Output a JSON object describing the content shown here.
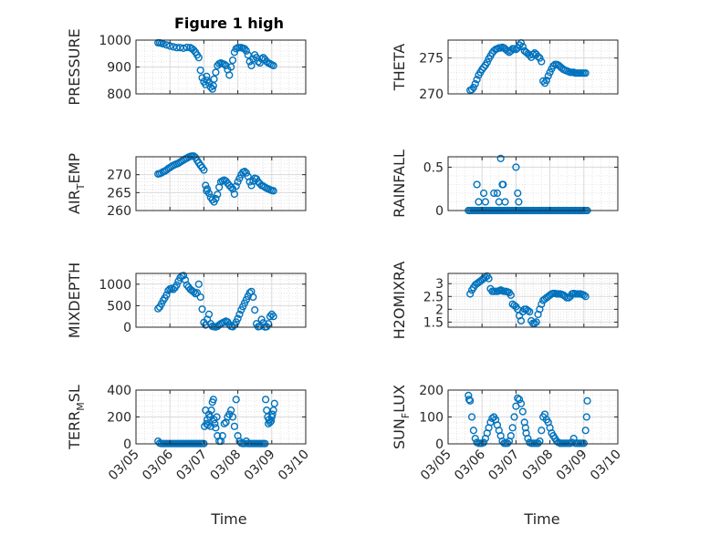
{
  "figure": {
    "title": "Figure 1 high",
    "xlabel": "Time",
    "xticks": [
      "03/05",
      "03/06",
      "03/07",
      "03/08",
      "03/09",
      "03/10"
    ],
    "marker_color": "#0072BD",
    "grid_color": "#d9d9d9",
    "axis_color": "#262626"
  },
  "chart_data": [
    {
      "type": "scatter",
      "ylabel": "PRESSURE",
      "yticks": [
        1000,
        900,
        800
      ],
      "ylim": [
        800,
        1000
      ],
      "xlim": [
        "03/05",
        "03/10"
      ],
      "grid": true,
      "x": [
        5.65,
        5.7,
        5.75,
        5.8,
        5.9,
        6.0,
        6.1,
        6.2,
        6.3,
        6.4,
        6.5,
        6.6,
        6.65,
        6.7,
        6.75,
        6.8,
        6.85,
        6.9,
        6.95,
        7.0,
        7.05,
        7.08,
        7.1,
        7.15,
        7.2,
        7.25,
        7.28,
        7.3,
        7.35,
        7.4,
        7.45,
        7.5,
        7.55,
        7.6,
        7.65,
        7.7,
        7.75,
        7.8,
        7.85,
        7.9,
        7.95,
        8.0,
        8.05,
        8.1,
        8.15,
        8.2,
        8.25,
        8.3,
        8.35,
        8.4,
        8.45,
        8.5,
        8.55,
        8.6,
        8.65,
        8.7,
        8.75,
        8.8,
        8.85,
        8.9,
        8.95,
        9.0,
        9.05
      ],
      "values": [
        990,
        990,
        988,
        986,
        982,
        978,
        975,
        972,
        972,
        970,
        973,
        972,
        968,
        963,
        955,
        945,
        935,
        888,
        860,
        845,
        835,
        865,
        850,
        840,
        825,
        818,
        830,
        855,
        880,
        905,
        912,
        915,
        912,
        910,
        905,
        890,
        870,
        900,
        925,
        955,
        968,
        972,
        972,
        972,
        970,
        968,
        960,
        945,
        920,
        905,
        930,
        945,
        935,
        920,
        915,
        930,
        935,
        928,
        920,
        915,
        912,
        908,
        905
      ]
    },
    {
      "type": "scatter",
      "ylabel": "THETA",
      "yticks": [
        275,
        270
      ],
      "ylim": [
        270,
        277.5
      ],
      "xlim": [
        "03/05",
        "03/10"
      ],
      "grid": true,
      "x": [
        5.65,
        5.7,
        5.75,
        5.8,
        5.85,
        5.9,
        5.95,
        6.0,
        6.05,
        6.1,
        6.15,
        6.2,
        6.25,
        6.3,
        6.35,
        6.4,
        6.45,
        6.5,
        6.55,
        6.6,
        6.65,
        6.7,
        6.75,
        6.8,
        6.85,
        6.9,
        6.95,
        7.0,
        7.05,
        7.1,
        7.15,
        7.2,
        7.25,
        7.3,
        7.35,
        7.4,
        7.45,
        7.5,
        7.55,
        7.6,
        7.65,
        7.7,
        7.75,
        7.8,
        7.85,
        7.9,
        7.95,
        8.0,
        8.05,
        8.1,
        8.15,
        8.2,
        8.25,
        8.3,
        8.35,
        8.4,
        8.45,
        8.5,
        8.55,
        8.6,
        8.65,
        8.7,
        8.75,
        8.8,
        8.85,
        8.9,
        8.95,
        9.0,
        9.05
      ],
      "values": [
        270.5,
        270.6,
        270.9,
        271.4,
        272.0,
        272.6,
        273.0,
        273.4,
        273.7,
        274.0,
        274.4,
        274.9,
        275.3,
        275.7,
        276.0,
        276.2,
        276.3,
        276.4,
        276.4,
        276.5,
        276.4,
        276.2,
        276.0,
        275.8,
        276.0,
        276.3,
        276.3,
        276.2,
        276.4,
        276.8,
        277.1,
        276.6,
        276.0,
        275.8,
        275.6,
        275.4,
        275.1,
        275.5,
        275.7,
        275.5,
        275.2,
        275.0,
        274.5,
        271.8,
        271.5,
        271.9,
        272.5,
        273.0,
        273.5,
        273.9,
        274.1,
        274.1,
        274.0,
        273.8,
        273.6,
        273.4,
        273.3,
        273.2,
        273.1,
        273.0,
        273.0,
        273.0,
        272.9,
        272.9,
        272.9,
        272.9,
        272.9,
        272.9,
        272.9
      ]
    },
    {
      "type": "scatter",
      "ylabel": "AIR_TEMP",
      "yticks": [
        270,
        265,
        260
      ],
      "ylim": [
        260,
        275
      ],
      "xlim": [
        "03/05",
        "03/10"
      ],
      "grid": true,
      "x": [
        5.65,
        5.7,
        5.75,
        5.8,
        5.85,
        5.9,
        5.95,
        6.0,
        6.05,
        6.1,
        6.15,
        6.2,
        6.25,
        6.3,
        6.35,
        6.4,
        6.45,
        6.5,
        6.55,
        6.6,
        6.65,
        6.7,
        6.75,
        6.8,
        6.85,
        6.9,
        6.95,
        7.0,
        7.05,
        7.08,
        7.1,
        7.15,
        7.2,
        7.25,
        7.3,
        7.35,
        7.4,
        7.45,
        7.5,
        7.55,
        7.6,
        7.65,
        7.7,
        7.75,
        7.8,
        7.85,
        7.9,
        7.95,
        8.0,
        8.05,
        8.1,
        8.15,
        8.2,
        8.25,
        8.3,
        8.35,
        8.4,
        8.45,
        8.5,
        8.55,
        8.6,
        8.65,
        8.7,
        8.75,
        8.8,
        8.85,
        8.9,
        8.95,
        9.0,
        9.05
      ],
      "values": [
        270.2,
        270.3,
        270.5,
        270.8,
        271.0,
        271.3,
        271.7,
        272.0,
        272.3,
        272.6,
        272.8,
        273.0,
        273.2,
        273.5,
        273.8,
        274.1,
        274.4,
        274.6,
        274.9,
        275.1,
        275.2,
        275.2,
        274.8,
        274.0,
        273.3,
        272.6,
        272.0,
        271.3,
        267.0,
        265.5,
        266.0,
        264.8,
        263.7,
        263.0,
        262.4,
        263.3,
        264.5,
        266.5,
        268.0,
        268.3,
        268.5,
        268.2,
        267.6,
        267.0,
        266.5,
        266.0,
        264.6,
        266.8,
        268.0,
        269.0,
        270.0,
        270.7,
        270.9,
        270.5,
        269.5,
        268.0,
        267.0,
        268.2,
        269.0,
        268.8,
        268.0,
        267.5,
        267.0,
        266.8,
        266.5,
        266.2,
        266.0,
        265.8,
        265.6,
        265.5
      ]
    },
    {
      "type": "scatter",
      "ylabel": "RAINFALL",
      "yticks": [
        0.5,
        0
      ],
      "ylim": [
        0,
        0.62
      ],
      "xlim": [
        "03/05",
        "03/10"
      ],
      "grid": true,
      "x": [
        5.6,
        5.65,
        5.7,
        5.75,
        5.8,
        5.85,
        5.9,
        5.95,
        6.0,
        6.05,
        6.1,
        6.15,
        6.2,
        6.25,
        6.3,
        6.35,
        6.4,
        6.45,
        6.5,
        6.55,
        6.6,
        6.65,
        6.7,
        6.75,
        6.8,
        6.85,
        6.9,
        6.95,
        7.0,
        7.05,
        7.1,
        7.15,
        7.2,
        7.25,
        7.3,
        7.35,
        7.4,
        7.45,
        7.5,
        7.55,
        7.6,
        7.65,
        7.7,
        7.75,
        7.8,
        7.85,
        7.9,
        7.95,
        8.0,
        8.05,
        8.1,
        8.15,
        8.2,
        8.25,
        8.3,
        8.35,
        8.4,
        8.45,
        8.5,
        8.55,
        8.6,
        8.65,
        8.7,
        8.75,
        8.8,
        8.85,
        8.9,
        8.95,
        9.0,
        9.05,
        9.1,
        5.85,
        5.9,
        6.05,
        6.1,
        6.35,
        6.45,
        6.5,
        6.55,
        6.6,
        6.62,
        6.68,
        7.0,
        7.05,
        7.08
      ],
      "values": [
        0,
        0,
        0,
        0,
        0,
        0,
        0,
        0,
        0,
        0,
        0,
        0,
        0,
        0,
        0,
        0,
        0,
        0,
        0,
        0,
        0,
        0,
        0,
        0,
        0,
        0,
        0,
        0,
        0,
        0,
        0,
        0,
        0,
        0,
        0,
        0,
        0,
        0,
        0,
        0,
        0,
        0,
        0,
        0,
        0,
        0,
        0,
        0,
        0,
        0,
        0,
        0,
        0,
        0,
        0,
        0,
        0,
        0,
        0,
        0,
        0,
        0,
        0,
        0,
        0,
        0,
        0,
        0,
        0,
        0,
        0,
        0.3,
        0.1,
        0.2,
        0.1,
        0.2,
        0.2,
        0.1,
        0.6,
        0.3,
        0.3,
        0.1,
        0.5,
        0.2,
        0.1
      ]
    },
    {
      "type": "scatter",
      "ylabel": "MIXDEPTH",
      "yticks": [
        1000,
        500,
        0
      ],
      "ylim": [
        0,
        1250
      ],
      "xlim": [
        "03/05",
        "03/10"
      ],
      "grid": true,
      "x": [
        5.65,
        5.7,
        5.75,
        5.8,
        5.85,
        5.9,
        5.95,
        6.0,
        6.05,
        6.1,
        6.15,
        6.2,
        6.25,
        6.3,
        6.35,
        6.4,
        6.45,
        6.5,
        6.55,
        6.6,
        6.65,
        6.7,
        6.75,
        6.8,
        6.85,
        6.9,
        6.95,
        7.0,
        7.05,
        7.1,
        7.15,
        7.2,
        7.25,
        7.3,
        7.35,
        7.4,
        7.45,
        7.5,
        7.55,
        7.6,
        7.65,
        7.7,
        7.75,
        7.8,
        7.85,
        7.9,
        7.95,
        8.0,
        8.05,
        8.1,
        8.15,
        8.2,
        8.25,
        8.3,
        8.35,
        8.4,
        8.45,
        8.5,
        8.55,
        8.6,
        8.65,
        8.7,
        8.75,
        8.8,
        8.85,
        8.9,
        8.95,
        9.0,
        9.05
      ],
      "values": [
        430,
        470,
        540,
        620,
        680,
        750,
        850,
        890,
        900,
        880,
        920,
        980,
        1070,
        1150,
        1190,
        1200,
        1100,
        980,
        930,
        880,
        850,
        820,
        780,
        800,
        1000,
        700,
        420,
        110,
        50,
        180,
        300,
        80,
        20,
        10,
        5,
        20,
        50,
        80,
        100,
        120,
        140,
        120,
        60,
        20,
        10,
        50,
        120,
        200,
        300,
        400,
        480,
        560,
        640,
        720,
        800,
        830,
        700,
        400,
        80,
        10,
        20,
        180,
        100,
        5,
        10,
        80,
        250,
        300,
        250
      ]
    },
    {
      "type": "scatter",
      "ylabel": "H2OMIXRA",
      "yticks": [
        3,
        2.5,
        2,
        1.5
      ],
      "ylim": [
        1.3,
        3.4
      ],
      "xlim": [
        "03/05",
        "03/10"
      ],
      "grid": true,
      "x": [
        5.65,
        5.7,
        5.75,
        5.8,
        5.85,
        5.9,
        5.95,
        6.0,
        6.05,
        6.1,
        6.15,
        6.2,
        6.25,
        6.3,
        6.35,
        6.4,
        6.45,
        6.5,
        6.55,
        6.6,
        6.65,
        6.7,
        6.75,
        6.8,
        6.85,
        6.9,
        6.95,
        7.0,
        7.05,
        7.1,
        7.15,
        7.2,
        7.25,
        7.3,
        7.35,
        7.4,
        7.45,
        7.5,
        7.55,
        7.6,
        7.65,
        7.7,
        7.75,
        7.8,
        7.85,
        7.9,
        7.95,
        8.0,
        8.05,
        8.1,
        8.15,
        8.2,
        8.25,
        8.3,
        8.35,
        8.4,
        8.45,
        8.5,
        8.55,
        8.6,
        8.65,
        8.7,
        8.75,
        8.8,
        8.85,
        8.9,
        8.95,
        9.0,
        9.05
      ],
      "values": [
        2.6,
        2.75,
        2.85,
        2.95,
        3.0,
        3.05,
        3.1,
        3.15,
        3.2,
        3.25,
        3.3,
        3.2,
        2.8,
        2.7,
        2.7,
        2.7,
        2.7,
        2.72,
        2.75,
        2.72,
        2.7,
        2.7,
        2.68,
        2.65,
        2.55,
        2.2,
        2.15,
        2.1,
        2.0,
        1.75,
        1.55,
        1.9,
        2.0,
        2.0,
        1.95,
        1.9,
        1.55,
        1.45,
        1.45,
        1.5,
        1.8,
        2.0,
        2.2,
        2.35,
        2.4,
        2.45,
        2.5,
        2.55,
        2.6,
        2.62,
        2.62,
        2.6,
        2.6,
        2.6,
        2.58,
        2.55,
        2.5,
        2.45,
        2.45,
        2.5,
        2.6,
        2.62,
        2.6,
        2.6,
        2.6,
        2.6,
        2.58,
        2.55,
        2.5
      ]
    },
    {
      "type": "scatter",
      "ylabel": "TERR_MSL",
      "yticks": [
        400,
        200,
        0
      ],
      "ylim": [
        0,
        400
      ],
      "xlim": [
        "03/05",
        "03/10"
      ],
      "grid": true,
      "x": [
        5.65,
        5.7,
        5.75,
        5.8,
        5.85,
        5.9,
        5.95,
        6.0,
        6.05,
        6.1,
        6.15,
        6.2,
        6.25,
        6.3,
        6.35,
        6.4,
        6.45,
        6.5,
        6.55,
        6.6,
        6.65,
        6.7,
        6.75,
        6.8,
        6.85,
        6.9,
        6.95,
        7.0,
        7.02,
        7.05,
        7.08,
        7.1,
        7.12,
        7.15,
        7.18,
        7.2,
        7.22,
        7.25,
        7.28,
        7.3,
        7.32,
        7.35,
        7.38,
        7.4,
        7.45,
        7.5,
        7.55,
        7.6,
        7.65,
        7.7,
        7.75,
        7.8,
        7.85,
        7.9,
        7.95,
        8.0,
        8.05,
        8.1,
        8.15,
        8.2,
        8.25,
        8.3,
        8.35,
        8.4,
        8.45,
        8.5,
        8.55,
        8.6,
        8.65,
        8.7,
        8.75,
        8.8,
        8.82,
        8.85,
        8.88,
        8.9,
        8.92,
        8.95,
        8.98,
        9.0,
        9.02,
        9.05,
        9.08
      ],
      "values": [
        20,
        5,
        2,
        2,
        2,
        2,
        2,
        2,
        2,
        2,
        2,
        2,
        2,
        2,
        2,
        2,
        2,
        2,
        2,
        2,
        2,
        2,
        2,
        2,
        2,
        2,
        2,
        2,
        130,
        250,
        150,
        180,
        140,
        220,
        200,
        130,
        250,
        310,
        330,
        180,
        150,
        120,
        200,
        60,
        20,
        20,
        60,
        150,
        160,
        200,
        220,
        250,
        200,
        130,
        330,
        60,
        20,
        5,
        2,
        2,
        20,
        2,
        2,
        2,
        2,
        2,
        2,
        2,
        2,
        2,
        2,
        2,
        330,
        250,
        200,
        150,
        180,
        160,
        170,
        200,
        220,
        250,
        300
      ]
    },
    {
      "type": "scatter",
      "ylabel": "SUN_FLUX",
      "yticks": [
        200,
        100,
        0
      ],
      "ylim": [
        0,
        200
      ],
      "xlim": [
        "03/05",
        "03/10"
      ],
      "grid": true,
      "x": [
        5.6,
        5.62,
        5.65,
        5.7,
        5.75,
        5.8,
        5.85,
        5.9,
        5.95,
        6.0,
        6.05,
        6.1,
        6.15,
        6.2,
        6.25,
        6.3,
        6.35,
        6.4,
        6.45,
        6.5,
        6.55,
        6.6,
        6.65,
        6.7,
        6.75,
        6.8,
        6.85,
        6.9,
        6.95,
        7.0,
        7.05,
        7.1,
        7.15,
        7.2,
        7.25,
        7.28,
        7.3,
        7.35,
        7.4,
        7.45,
        7.5,
        7.55,
        7.6,
        7.65,
        7.7,
        7.75,
        7.8,
        7.85,
        7.9,
        7.95,
        8.0,
        8.05,
        8.1,
        8.15,
        8.2,
        8.25,
        8.3,
        8.35,
        8.4,
        8.45,
        8.5,
        8.55,
        8.6,
        8.65,
        8.7,
        8.75,
        8.8,
        8.85,
        8.9,
        8.95,
        9.0,
        9.05,
        9.08,
        9.1
      ],
      "values": [
        180,
        165,
        160,
        100,
        50,
        20,
        5,
        2,
        2,
        2,
        5,
        20,
        40,
        60,
        80,
        95,
        100,
        90,
        70,
        50,
        30,
        10,
        2,
        2,
        2,
        10,
        30,
        60,
        100,
        140,
        170,
        165,
        150,
        120,
        80,
        60,
        40,
        20,
        5,
        2,
        2,
        2,
        2,
        2,
        10,
        50,
        100,
        110,
        90,
        80,
        60,
        40,
        30,
        20,
        10,
        5,
        2,
        2,
        2,
        2,
        2,
        2,
        2,
        5,
        20,
        2,
        2,
        2,
        2,
        2,
        2,
        50,
        100,
        160
      ]
    }
  ]
}
